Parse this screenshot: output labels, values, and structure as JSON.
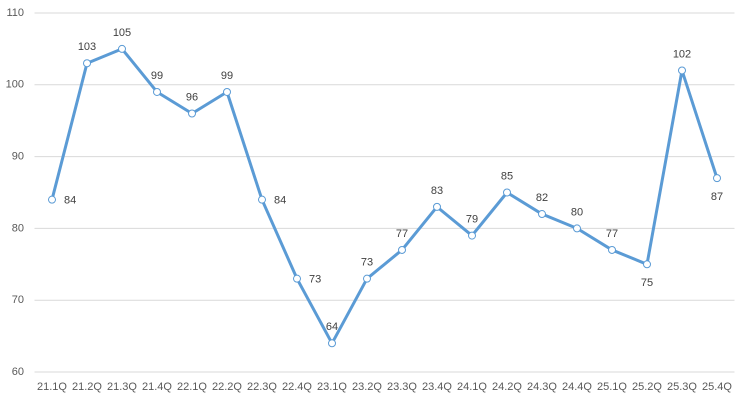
{
  "chart_data": {
    "type": "line",
    "categories": [
      "21.1Q",
      "21.2Q",
      "21.3Q",
      "21.4Q",
      "22.1Q",
      "22.2Q",
      "22.3Q",
      "22.4Q",
      "23.1Q",
      "23.2Q",
      "23.3Q",
      "23.4Q",
      "24.1Q",
      "24.2Q",
      "24.3Q",
      "24.4Q",
      "25.1Q",
      "25.2Q",
      "25.3Q",
      "25.4Q"
    ],
    "values": [
      84,
      103,
      105,
      99,
      96,
      99,
      84,
      73,
      64,
      73,
      77,
      83,
      79,
      85,
      82,
      80,
      77,
      75,
      102,
      87
    ],
    "color": "#5b9bd5",
    "ylim": [
      60,
      110
    ],
    "yticks": [
      60,
      70,
      80,
      90,
      100,
      110
    ],
    "grid": true
  }
}
